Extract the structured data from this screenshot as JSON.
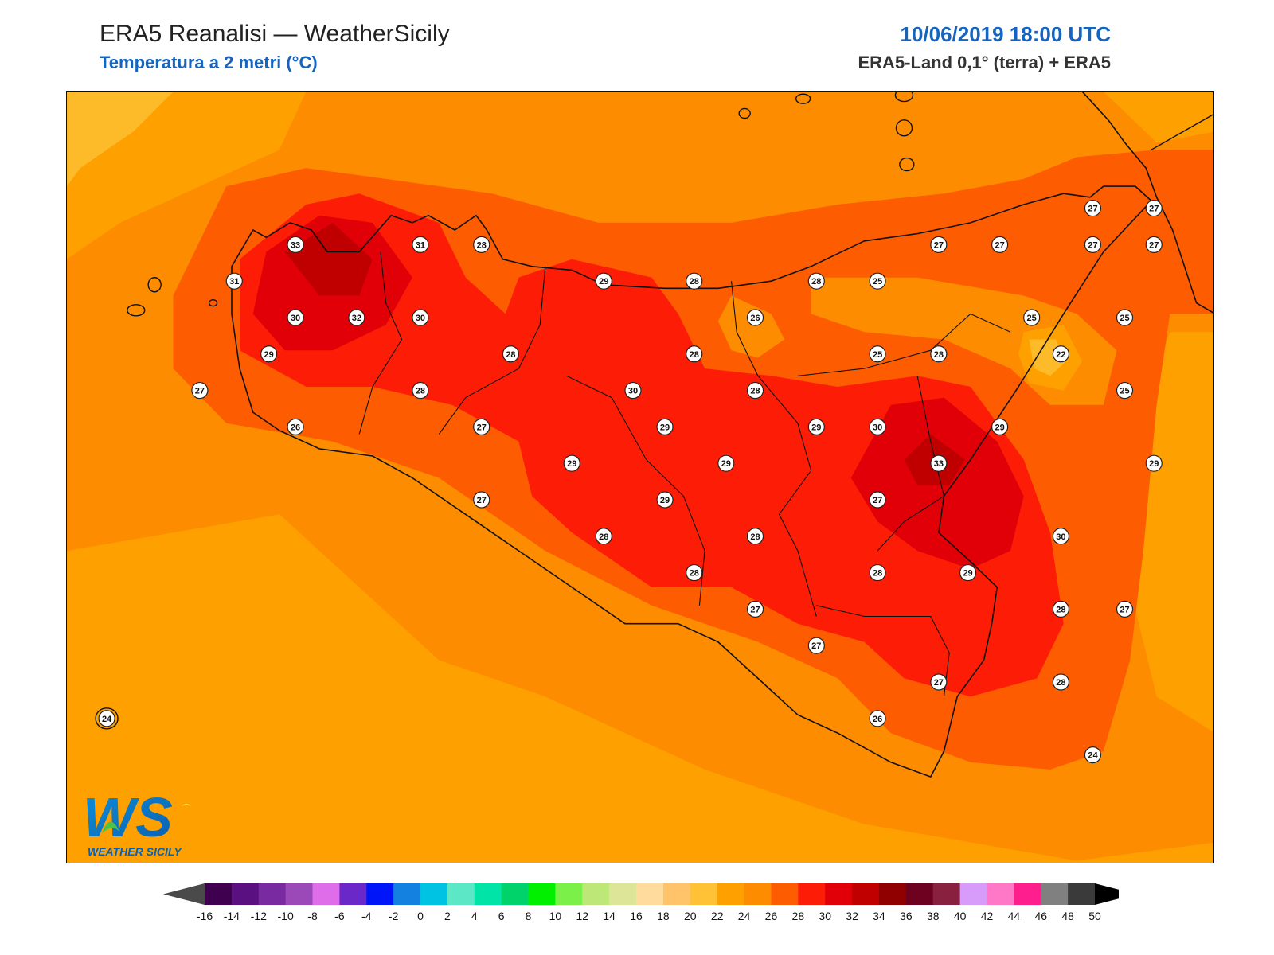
{
  "header": {
    "title": "ERA5 Reanalisi — WeatherSicily",
    "subtitle": "Temperatura a 2 metri (°C)",
    "datetime": "10/06/2019 18:00 UTC",
    "source": "ERA5-Land 0,1° (terra) + ERA5"
  },
  "map": {
    "field": "2m temperature",
    "colors": {
      "t22": "#fdbb2a",
      "t24": "#fea000",
      "t26": "#fd8c00",
      "t28": "#fd5c00",
      "t30": "#fd1d06",
      "t32": "#e10008",
      "t34": "#c00000",
      "coast": "#111111"
    },
    "stations": [
      {
        "v": "33",
        "lon": 12.66,
        "lat": 38.14
      },
      {
        "v": "31",
        "lon": 13.13,
        "lat": 38.14
      },
      {
        "v": "28",
        "lon": 13.36,
        "lat": 38.14
      },
      {
        "v": "31",
        "lon": 12.43,
        "lat": 38.04
      },
      {
        "v": "30",
        "lon": 12.66,
        "lat": 37.94
      },
      {
        "v": "32",
        "lon": 12.89,
        "lat": 37.94
      },
      {
        "v": "30",
        "lon": 13.13,
        "lat": 37.94
      },
      {
        "v": "29",
        "lon": 12.56,
        "lat": 37.84
      },
      {
        "v": "27",
        "lon": 12.3,
        "lat": 37.74
      },
      {
        "v": "28",
        "lon": 13.13,
        "lat": 37.74
      },
      {
        "v": "26",
        "lon": 12.66,
        "lat": 37.64
      },
      {
        "v": "27",
        "lon": 13.36,
        "lat": 37.64
      },
      {
        "v": "28",
        "lon": 13.47,
        "lat": 37.84
      },
      {
        "v": "29",
        "lon": 13.82,
        "lat": 38.04
      },
      {
        "v": "28",
        "lon": 14.16,
        "lat": 38.04
      },
      {
        "v": "28",
        "lon": 14.16,
        "lat": 37.84
      },
      {
        "v": "30",
        "lon": 13.93,
        "lat": 37.74
      },
      {
        "v": "28",
        "lon": 14.39,
        "lat": 37.74
      },
      {
        "v": "29",
        "lon": 14.05,
        "lat": 37.64
      },
      {
        "v": "29",
        "lon": 13.7,
        "lat": 37.54
      },
      {
        "v": "29",
        "lon": 14.28,
        "lat": 37.54
      },
      {
        "v": "27",
        "lon": 13.36,
        "lat": 37.44
      },
      {
        "v": "29",
        "lon": 14.05,
        "lat": 37.44
      },
      {
        "v": "28",
        "lon": 13.82,
        "lat": 37.34
      },
      {
        "v": "28",
        "lon": 14.39,
        "lat": 37.34
      },
      {
        "v": "28",
        "lon": 14.16,
        "lat": 37.24
      },
      {
        "v": "27",
        "lon": 14.39,
        "lat": 37.14
      },
      {
        "v": "28",
        "lon": 14.62,
        "lat": 38.04
      },
      {
        "v": "25",
        "lon": 14.85,
        "lat": 38.04
      },
      {
        "v": "26",
        "lon": 14.39,
        "lat": 37.94
      },
      {
        "v": "27",
        "lon": 15.08,
        "lat": 38.14
      },
      {
        "v": "27",
        "lon": 15.31,
        "lat": 38.14
      },
      {
        "v": "27",
        "lon": 15.66,
        "lat": 38.14
      },
      {
        "v": "27",
        "lon": 15.66,
        "lat": 38.24
      },
      {
        "v": "27",
        "lon": 15.89,
        "lat": 38.24
      },
      {
        "v": "27",
        "lon": 15.89,
        "lat": 38.14
      },
      {
        "v": "25",
        "lon": 15.43,
        "lat": 37.94
      },
      {
        "v": "25",
        "lon": 15.78,
        "lat": 37.94
      },
      {
        "v": "25",
        "lon": 14.85,
        "lat": 37.84
      },
      {
        "v": "28",
        "lon": 15.08,
        "lat": 37.84
      },
      {
        "v": "22",
        "lon": 15.54,
        "lat": 37.84
      },
      {
        "v": "25",
        "lon": 15.78,
        "lat": 37.74
      },
      {
        "v": "29",
        "lon": 14.62,
        "lat": 37.64
      },
      {
        "v": "30",
        "lon": 14.85,
        "lat": 37.64
      },
      {
        "v": "29",
        "lon": 15.31,
        "lat": 37.64
      },
      {
        "v": "33",
        "lon": 15.08,
        "lat": 37.54
      },
      {
        "v": "29",
        "lon": 15.89,
        "lat": 37.54
      },
      {
        "v": "27",
        "lon": 14.85,
        "lat": 37.44
      },
      {
        "v": "30",
        "lon": 15.54,
        "lat": 37.34
      },
      {
        "v": "28",
        "lon": 14.85,
        "lat": 37.24
      },
      {
        "v": "29",
        "lon": 15.19,
        "lat": 37.24
      },
      {
        "v": "28",
        "lon": 15.54,
        "lat": 37.14
      },
      {
        "v": "27",
        "lon": 15.78,
        "lat": 37.14
      },
      {
        "v": "27",
        "lon": 14.62,
        "lat": 37.04
      },
      {
        "v": "27",
        "lon": 15.08,
        "lat": 36.94
      },
      {
        "v": "28",
        "lon": 15.54,
        "lat": 36.94
      },
      {
        "v": "26",
        "lon": 14.85,
        "lat": 36.84
      },
      {
        "v": "24",
        "lon": 15.66,
        "lat": 36.74
      },
      {
        "v": "24",
        "lon": 11.95,
        "lat": 36.84
      }
    ]
  },
  "logo": {
    "letters": "WS",
    "text": "WEATHER SICILY"
  },
  "legend": {
    "ticks": [
      "-16",
      "-14",
      "-12",
      "-10",
      "-8",
      "-6",
      "-4",
      "-2",
      "0",
      "2",
      "4",
      "6",
      "8",
      "10",
      "12",
      "14",
      "16",
      "18",
      "20",
      "22",
      "24",
      "26",
      "28",
      "30",
      "32",
      "34",
      "36",
      "38",
      "40",
      "42",
      "44",
      "46",
      "48",
      "50"
    ],
    "colors": [
      "#3f0050",
      "#5a1080",
      "#7a2aa0",
      "#9b48b8",
      "#df6ce8",
      "#6a28c8",
      "#0015f8",
      "#1480e0",
      "#00c2e2",
      "#5ce8c6",
      "#00e4a8",
      "#00d36a",
      "#00f000",
      "#7af048",
      "#bde878",
      "#dde598",
      "#ffdc9e",
      "#ffc46a",
      "#ffc236",
      "#fea000",
      "#fd8c00",
      "#fd5c00",
      "#fd1d06",
      "#e10008",
      "#c00000",
      "#910000",
      "#6e0020",
      "#8a2040",
      "#d79cf9",
      "#ff78c8",
      "#ff1e8e",
      "#808080",
      "#3a3a3a"
    ],
    "under_color": "#4a4a4a",
    "over_color": "#000000"
  }
}
